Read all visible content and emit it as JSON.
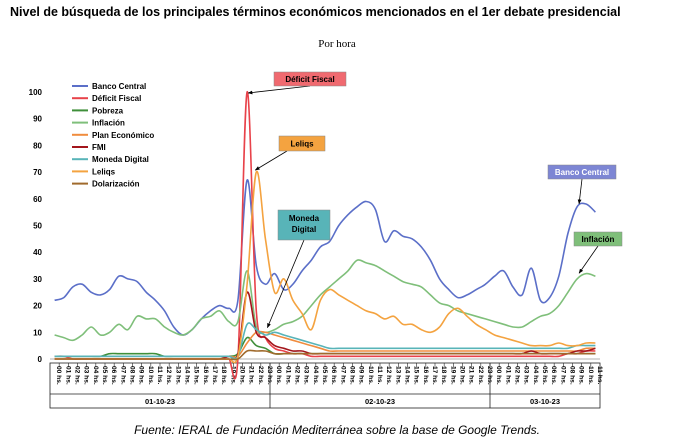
{
  "title": "Nivel de búsqueda de los principales términos económicos mencionados en el 1er debate presidencial",
  "subtitle": "Por hora",
  "source": "Fuente: IERAL de Fundación Mediterránea sobre la base de Google Trends.",
  "chart_data": {
    "type": "line",
    "ylim": [
      0,
      100
    ],
    "yticks": [
      0,
      10,
      20,
      30,
      40,
      50,
      60,
      70,
      80,
      90,
      100
    ],
    "x_hour_labels": [
      "00 hs.",
      "01 hs.",
      "02 hs.",
      "03 hs.",
      "04 hs.",
      "05 hs.",
      "06 hs.",
      "07 hs.",
      "08 hs.",
      "09 hs.",
      "10 hs.",
      "11 hs.",
      "12 hs.",
      "13 hs.",
      "14 hs.",
      "15 hs.",
      "16 hs.",
      "17 hs.",
      "18 hs.",
      "19 hs.",
      "20 hs.",
      "21 hs.",
      "22 hs.",
      "23 hs.",
      "00 hs.",
      "01 hs.",
      "02 hs.",
      "03 hs.",
      "04 hs.",
      "05 hs.",
      "06 hs.",
      "07 hs.",
      "08 hs.",
      "09 hs.",
      "10 hs.",
      "11 hs.",
      "12 hs.",
      "13 hs.",
      "14 hs.",
      "15 hs.",
      "16 hs.",
      "17 hs.",
      "18 hs.",
      "19 hs.",
      "20 hs.",
      "21 hs.",
      "22 hs.",
      "23 hs.",
      "00 hs.",
      "01 hs.",
      "02 hs.",
      "03 hs.",
      "04 hs.",
      "05 hs.",
      "06 hs.",
      "07 hs.",
      "08 hs.",
      "09 hs.",
      "10 hs.",
      "11 hs."
    ],
    "day_groups": [
      {
        "label": "01-10-23",
        "start": 0,
        "count": 24
      },
      {
        "label": "02-10-23",
        "start": 24,
        "count": 24
      },
      {
        "label": "03-10-23",
        "start": 48,
        "count": 12
      }
    ],
    "legend_position": "top-left",
    "series": [
      {
        "name": "Banco Central",
        "color": "#5b6fc8",
        "values": [
          22,
          23,
          27,
          28,
          25,
          24,
          26,
          31,
          30,
          29,
          25,
          22,
          18,
          12,
          9,
          11,
          15,
          18,
          20,
          19,
          22,
          67,
          35,
          28,
          32,
          26,
          28,
          33,
          37,
          42,
          44,
          50,
          54,
          57,
          59,
          56,
          44,
          48,
          46,
          45,
          42,
          37,
          30,
          26,
          23,
          24,
          26,
          28,
          31,
          33,
          27,
          24,
          34,
          22,
          23,
          31,
          47,
          57,
          58,
          55
        ]
      },
      {
        "name": "Déficit Fiscal",
        "color": "#e8424a",
        "values": [
          1,
          1,
          0,
          0,
          0,
          0,
          0,
          0,
          0,
          0,
          0,
          0,
          0,
          0,
          0,
          0,
          0,
          0,
          0,
          0,
          0,
          100,
          18,
          8,
          4,
          3,
          2,
          2,
          1,
          1,
          1,
          1,
          1,
          1,
          1,
          1,
          1,
          1,
          1,
          1,
          1,
          1,
          1,
          1,
          1,
          1,
          1,
          1,
          1,
          1,
          1,
          1,
          1,
          1,
          1,
          1,
          2,
          2,
          3,
          3
        ]
      },
      {
        "name": "Pobreza",
        "color": "#3f8f3a",
        "values": [
          1,
          1,
          1,
          1,
          1,
          1,
          2,
          2,
          2,
          2,
          2,
          2,
          1,
          1,
          1,
          1,
          1,
          1,
          1,
          1,
          2,
          8,
          5,
          4,
          2,
          2,
          2,
          2,
          2,
          2,
          2,
          2,
          2,
          2,
          2,
          2,
          2,
          2,
          2,
          2,
          2,
          2,
          2,
          2,
          2,
          2,
          2,
          2,
          2,
          2,
          2,
          2,
          2,
          2,
          2,
          2,
          2,
          2,
          2,
          2
        ]
      },
      {
        "name": "Inflación",
        "color": "#7fbf7a",
        "values": [
          9,
          8,
          7,
          9,
          12,
          9,
          10,
          13,
          11,
          16,
          15,
          15,
          12,
          10,
          9,
          11,
          15,
          16,
          18,
          14,
          14,
          33,
          12,
          10,
          11,
          13,
          14,
          16,
          20,
          24,
          27,
          30,
          33,
          37,
          36,
          35,
          33,
          31,
          29,
          28,
          27,
          24,
          21,
          20,
          18,
          17,
          16,
          15,
          14,
          13,
          12,
          12,
          14,
          16,
          17,
          20,
          25,
          30,
          32,
          31
        ]
      },
      {
        "name": "Plan Económico",
        "color": "#f08c3e",
        "values": [
          1,
          1,
          1,
          1,
          1,
          1,
          1,
          1,
          1,
          1,
          1,
          1,
          1,
          1,
          1,
          1,
          1,
          1,
          1,
          1,
          1,
          6,
          10,
          10,
          9,
          8,
          7,
          6,
          5,
          4,
          3,
          3,
          3,
          3,
          3,
          3,
          3,
          3,
          3,
          3,
          3,
          3,
          3,
          3,
          3,
          3,
          3,
          3,
          3,
          3,
          3,
          3,
          3,
          3,
          3,
          3,
          3,
          3,
          4,
          4
        ]
      },
      {
        "name": "FMI",
        "color": "#a3161c",
        "values": [
          0,
          0,
          0,
          0,
          0,
          0,
          0,
          0,
          0,
          0,
          0,
          0,
          0,
          0,
          0,
          0,
          0,
          0,
          0,
          1,
          2,
          25,
          10,
          8,
          5,
          4,
          3,
          3,
          2,
          2,
          2,
          2,
          2,
          2,
          2,
          2,
          2,
          2,
          2,
          2,
          2,
          2,
          2,
          2,
          2,
          2,
          2,
          2,
          2,
          2,
          2,
          2,
          3,
          2,
          2,
          2,
          2,
          3,
          3,
          4
        ]
      },
      {
        "name": "Moneda Digital",
        "color": "#58b4b8",
        "values": [
          1,
          1,
          1,
          1,
          1,
          1,
          1,
          1,
          1,
          1,
          1,
          1,
          1,
          1,
          1,
          1,
          1,
          1,
          1,
          1,
          1,
          13,
          11,
          9,
          10,
          9,
          8,
          7,
          6,
          5,
          4,
          4,
          4,
          4,
          4,
          4,
          4,
          4,
          4,
          4,
          4,
          4,
          4,
          4,
          4,
          4,
          4,
          4,
          4,
          4,
          4,
          4,
          4,
          4,
          4,
          4,
          4,
          5,
          5,
          5
        ]
      },
      {
        "name": "Leliqs",
        "color": "#f4a340",
        "values": [
          0,
          0,
          0,
          0,
          0,
          0,
          0,
          0,
          0,
          0,
          0,
          0,
          0,
          0,
          0,
          0,
          0,
          0,
          0,
          0,
          1,
          28,
          70,
          45,
          25,
          30,
          22,
          17,
          11,
          22,
          26,
          24,
          22,
          20,
          18,
          17,
          15,
          16,
          13,
          13,
          11,
          10,
          12,
          17,
          19,
          16,
          13,
          11,
          9,
          8,
          7,
          6,
          5,
          5,
          5,
          6,
          5,
          5,
          6,
          6
        ]
      },
      {
        "name": "Dolarización",
        "color": "#a06a2c",
        "values": [
          0,
          0,
          0,
          0,
          0,
          0,
          0,
          0,
          0,
          0,
          0,
          0,
          0,
          0,
          0,
          0,
          0,
          0,
          0,
          0,
          0,
          3,
          3,
          3,
          2,
          2,
          2,
          2,
          2,
          2,
          2,
          2,
          2,
          2,
          2,
          2,
          2,
          2,
          2,
          2,
          2,
          2,
          2,
          2,
          2,
          2,
          2,
          2,
          2,
          2,
          2,
          2,
          2,
          2,
          2,
          2,
          2,
          2,
          2,
          2
        ]
      }
    ],
    "annotations": [
      {
        "text": "Déficit Fiscal",
        "series": "Déficit Fiscal",
        "box_color": "#f06a70"
      },
      {
        "text": "Leliqs",
        "series": "Leliqs",
        "box_color": "#f4a340"
      },
      {
        "text": "Moneda Digital",
        "series": "Moneda Digital",
        "box_color": "#58b4b8"
      },
      {
        "text": "Banco Central",
        "series": "Banco Central",
        "box_color": "#7d86d4"
      },
      {
        "text": "Inflación",
        "series": "Inflación",
        "box_color": "#7fbf7a"
      }
    ]
  }
}
